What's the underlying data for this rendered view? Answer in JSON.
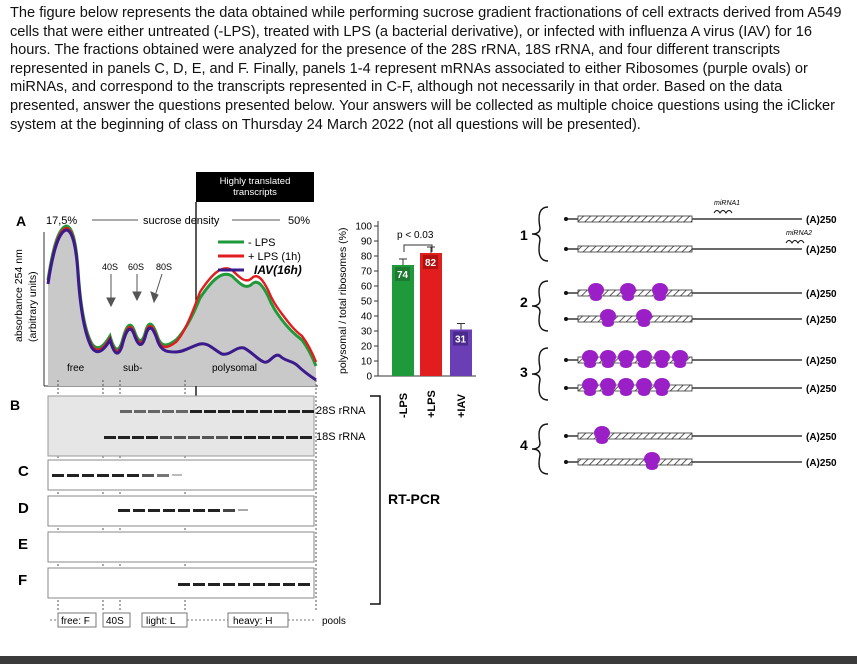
{
  "prompt": "The figure below represents the data obtained while performing sucrose gradient fractionations of cell extracts derived from A549 cells that were either untreated (-LPS), treated with LPS (a bacterial derivative), or infected with influenza A virus (IAV) for 16 hours. The fractions obtained were analyzed for the presence of the 28S rRNA, 18S rRNA, and four different transcripts represented in panels C, D, E, and F. Finally, panels 1-4 represent mRNAs associated to either Ribosomes (purple ovals) or miRNAs, and correspond to the transcripts represented in C-F, although not necessarily in that order. Based on the data presented, answer the questions presented below. Your answers will be collected as multiple choice questions using the iClicker system at the beginning of class on Thursday 24 March 2022 (not all questions will be presented).",
  "panelA": {
    "letter": "A",
    "pct_left": "17,5%",
    "pct_right": "50%",
    "gradient_label": "sucrose density",
    "ylabel_1": "absorbance 254 nm",
    "ylabel_2": "(arbitrary units)",
    "peaks": [
      "40S",
      "60S",
      "80S"
    ],
    "region_free": "free",
    "region_sub": "sub-",
    "region_poly": "polysomal",
    "highlight_line1": "Highly translated",
    "highlight_line2": "transcripts",
    "legend": [
      {
        "label": "- LPS",
        "color": "#1f9a3a"
      },
      {
        "label": "+ LPS (1h)",
        "color": "#e21d1d"
      },
      {
        "label": "IAV(16h)",
        "color": "#3b1a8c"
      }
    ]
  },
  "barchart": {
    "ylabel": "polysomal / total ribosomes (%)",
    "yticks": [
      "100",
      "90",
      "80",
      "70",
      "60",
      "50",
      "40",
      "30",
      "20",
      "10",
      "0"
    ],
    "pvalue": "p < 0.03",
    "bars": [
      {
        "label": "-LPS",
        "value": 74,
        "value_text": "74",
        "color": "#1f9a3a"
      },
      {
        "label": "+LPS",
        "value": 82,
        "value_text": "82",
        "color": "#e21d1d"
      },
      {
        "label": "+IAV",
        "value": 31,
        "value_text": "31",
        "color": "#6a3fb5"
      }
    ]
  },
  "panelB": {
    "letter": "B",
    "band1": "28S rRNA",
    "band2": "18S rRNA"
  },
  "panels": [
    "C",
    "D",
    "E",
    "F"
  ],
  "rtpcr": "RT-PCR",
  "pools": {
    "free": "free: F",
    "s40": "40S",
    "light": "light: L",
    "heavy": "heavy: H",
    "label": "pools"
  },
  "diagrams": {
    "numbers": [
      "1",
      "2",
      "3",
      "4"
    ],
    "polyA": "(A)250",
    "mirna1": "miRNA1",
    "mirna2": "miRNA2",
    "ribosome_color": "#9a1fc6"
  }
}
